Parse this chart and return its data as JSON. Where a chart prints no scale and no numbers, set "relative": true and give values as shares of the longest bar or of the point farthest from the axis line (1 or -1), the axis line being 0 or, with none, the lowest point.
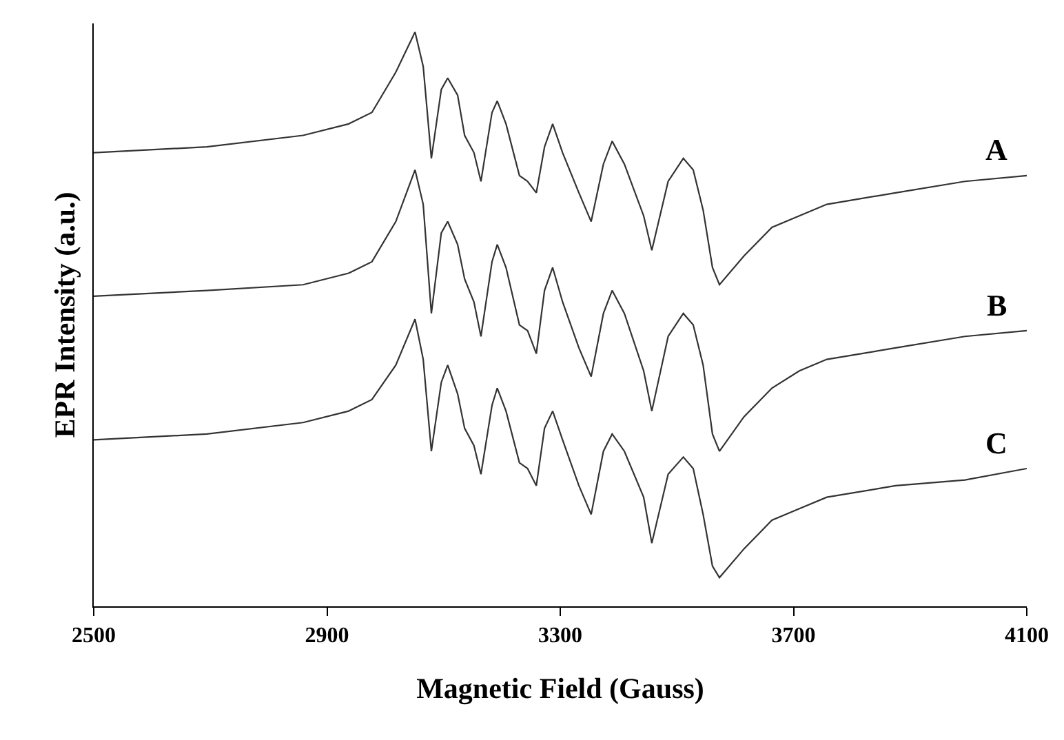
{
  "chart_data": {
    "type": "line",
    "relative": true,
    "xlabel": "Magnetic Field (Gauss)",
    "ylabel": "EPR Intensity (a.u.)",
    "xlim": [
      2500,
      4100
    ],
    "xticks": [
      2500,
      2900,
      3300,
      3700,
      4100
    ],
    "legend": false,
    "marker": "none",
    "line_style": "solid",
    "x": [
      2500,
      2694,
      2859,
      2937,
      2977,
      3018,
      3051,
      3065,
      3079,
      3096,
      3107,
      3124,
      3136,
      3152,
      3164,
      3183,
      3192,
      3207,
      3230,
      3244,
      3259,
      3273,
      3287,
      3304,
      3332,
      3353,
      3374,
      3389,
      3410,
      3443,
      3457,
      3485,
      3511,
      3528,
      3545,
      3561,
      3573,
      3615,
      3663,
      3710,
      3757,
      3875,
      3994,
      4100
    ],
    "series": [
      {
        "name": "A",
        "color": "#333333",
        "values": [
          0.79,
          0.8,
          0.82,
          0.84,
          0.86,
          0.93,
          1.0,
          0.94,
          0.78,
          0.9,
          0.92,
          0.89,
          0.82,
          0.79,
          0.74,
          0.86,
          0.88,
          0.84,
          0.75,
          0.74,
          0.72,
          0.8,
          0.84,
          0.79,
          0.72,
          0.67,
          0.77,
          0.81,
          0.77,
          0.68,
          0.62,
          0.74,
          0.78,
          0.76,
          0.69,
          0.59,
          0.56,
          0.61,
          0.66,
          0.68,
          0.7,
          0.72,
          0.74,
          0.75
        ]
      },
      {
        "name": "B",
        "color": "#333333",
        "values": [
          0.54,
          0.55,
          0.56,
          0.58,
          0.6,
          0.67,
          0.76,
          0.7,
          0.51,
          0.65,
          0.67,
          0.63,
          0.57,
          0.53,
          0.47,
          0.6,
          0.63,
          0.59,
          0.49,
          0.48,
          0.44,
          0.55,
          0.59,
          0.53,
          0.45,
          0.4,
          0.51,
          0.55,
          0.51,
          0.41,
          0.34,
          0.47,
          0.51,
          0.49,
          0.42,
          0.3,
          0.27,
          0.33,
          0.38,
          0.41,
          0.43,
          0.45,
          0.47,
          0.48
        ]
      },
      {
        "name": "C",
        "color": "#333333",
        "values": [
          0.29,
          0.3,
          0.32,
          0.34,
          0.36,
          0.42,
          0.5,
          0.43,
          0.27,
          0.39,
          0.42,
          0.37,
          0.31,
          0.28,
          0.23,
          0.35,
          0.38,
          0.34,
          0.25,
          0.24,
          0.21,
          0.31,
          0.34,
          0.29,
          0.21,
          0.16,
          0.27,
          0.3,
          0.27,
          0.19,
          0.11,
          0.23,
          0.26,
          0.24,
          0.16,
          0.07,
          0.05,
          0.1,
          0.15,
          0.17,
          0.19,
          0.21,
          0.22,
          0.24
        ]
      }
    ]
  }
}
